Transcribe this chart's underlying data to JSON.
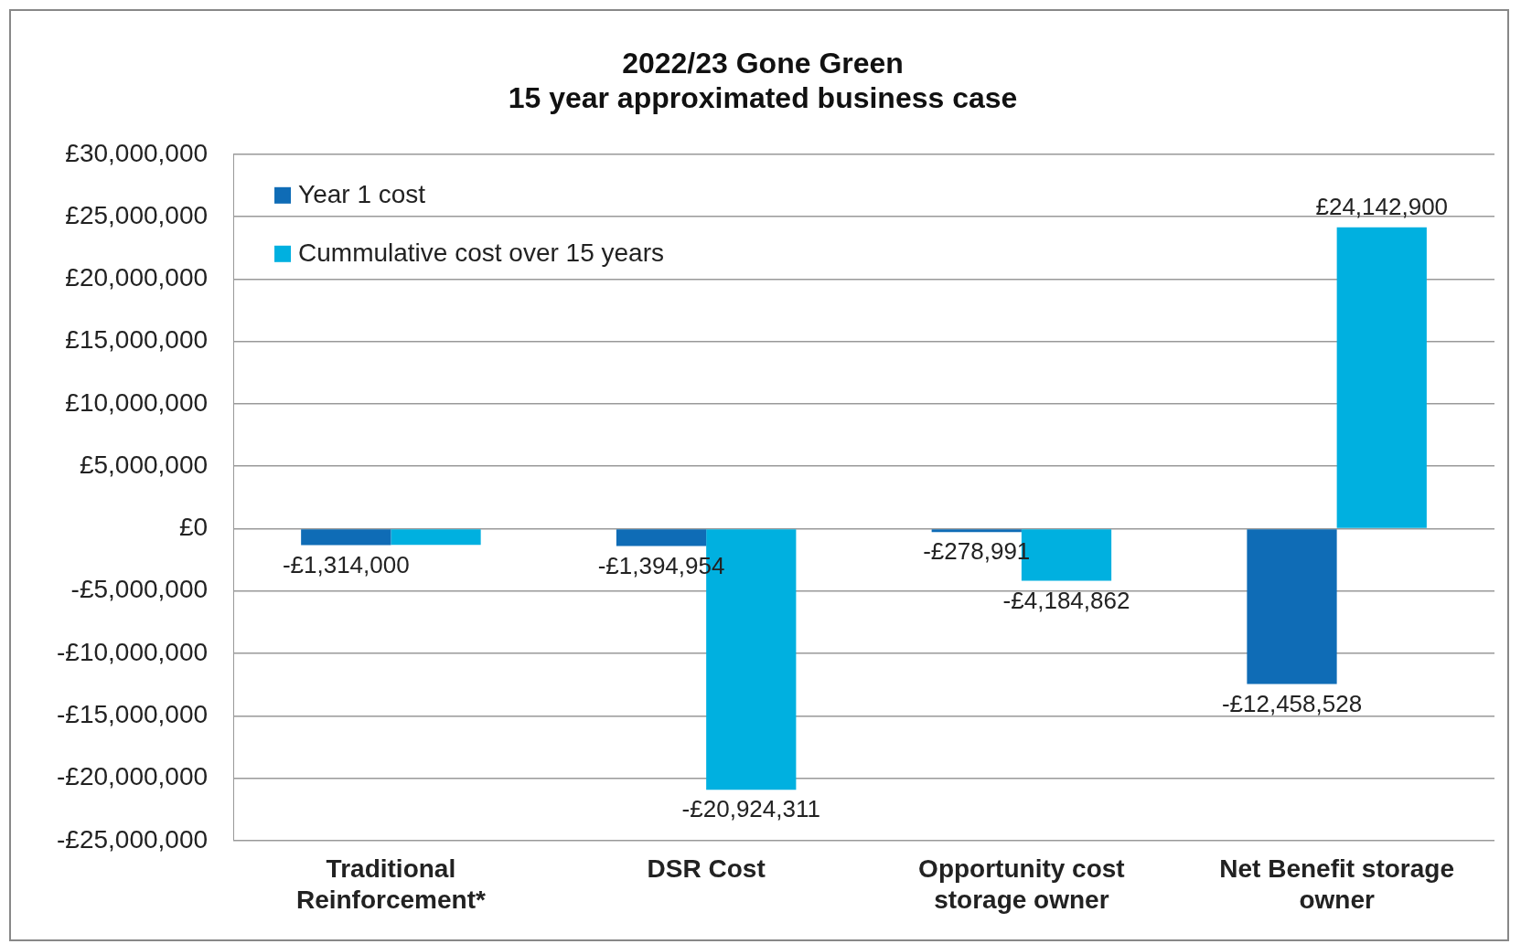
{
  "chart_data": {
    "type": "bar",
    "title": "2022/23 Gone Green\n15 year approximated business case",
    "categories": [
      "Traditional Reinforcement*",
      "DSR Cost",
      "Opportunity cost storage owner",
      "Net Benefit storage owner"
    ],
    "series": [
      {
        "name": "Year 1 cost",
        "color": "#0f6cb6",
        "values": [
          -1314000,
          -1394954,
          -278991,
          -12458528
        ],
        "value_labels": [
          "-£1,314,000",
          "-£1,394,954",
          "-£278,991",
          "-£12,458,528"
        ]
      },
      {
        "name": "Cummulative cost over 15 years",
        "color": "#00b0e0",
        "values": [
          -1300000,
          -20924311,
          -4184862,
          24142900
        ],
        "value_labels": [
          null,
          "-£20,924,311",
          "-£4,184,862",
          "£24,142,900"
        ]
      }
    ],
    "ylim": [
      -25000000,
      30000000
    ],
    "yticks": [
      {
        "value": -25000000,
        "label": "-£25,000,000"
      },
      {
        "value": -20000000,
        "label": "-£20,000,000"
      },
      {
        "value": -15000000,
        "label": "-£15,000,000"
      },
      {
        "value": -10000000,
        "label": "-£10,000,000"
      },
      {
        "value": -5000000,
        "label": "-£5,000,000"
      },
      {
        "value": 0,
        "label": "£0"
      },
      {
        "value": 5000000,
        "label": "£5,000,000"
      },
      {
        "value": 10000000,
        "label": "£10,000,000"
      },
      {
        "value": 15000000,
        "label": "£15,000,000"
      },
      {
        "value": 20000000,
        "label": "£20,000,000"
      },
      {
        "value": 25000000,
        "label": "£25,000,000"
      },
      {
        "value": 30000000,
        "label": "£30,000,000"
      }
    ],
    "grid": "y",
    "legend": "top left"
  }
}
